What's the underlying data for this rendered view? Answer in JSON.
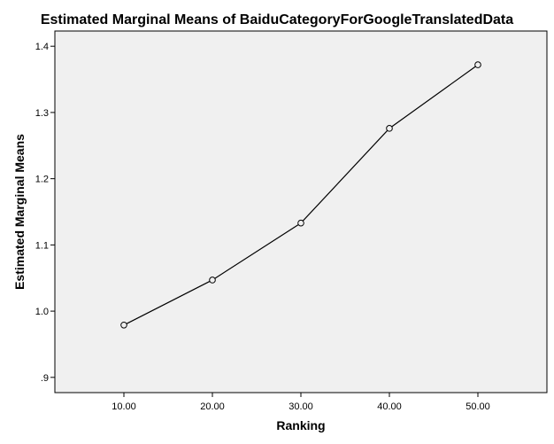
{
  "chart_data": {
    "type": "line",
    "title": "Estimated Marginal Means of BaiduCategoryForGoogleTranslatedData",
    "xlabel": "Ranking",
    "ylabel": "Estimated Marginal Means",
    "x": [
      10,
      20,
      30,
      40,
      50
    ],
    "x_tick_labels": [
      "10.00",
      "20.00",
      "30.00",
      "40.00",
      "50.00"
    ],
    "values": [
      0.979,
      1.047,
      1.133,
      1.276,
      1.372
    ],
    "y_ticks": [
      0.9,
      1.0,
      1.1,
      1.2,
      1.3,
      1.4
    ],
    "y_tick_labels": [
      ".9",
      "1.0",
      "1.1",
      "1.2",
      "1.3",
      "1.4"
    ],
    "xlim": [
      2.2,
      57.8
    ],
    "ylim": [
      0.877,
      1.423
    ],
    "marker": "circle",
    "grid": false,
    "legend": "none",
    "colors": {
      "plot_background": "#f0f0f0",
      "line": "#000000",
      "frame": "#000000"
    }
  }
}
